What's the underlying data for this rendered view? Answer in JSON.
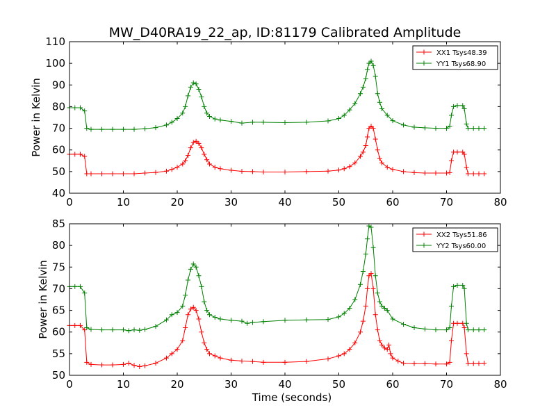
{
  "title": "MW_D40RA19_22_ap, ID:81179 Calibrated Amplitude",
  "chart_data": [
    {
      "type": "line",
      "ylabel": "Power in Kelvin",
      "xlabel": "",
      "xlim": [
        0,
        80
      ],
      "ylim": [
        40,
        110
      ],
      "xticks": [
        0,
        10,
        20,
        30,
        40,
        50,
        60,
        70,
        80
      ],
      "yticks": [
        40,
        50,
        60,
        70,
        80,
        90,
        100,
        110
      ],
      "legend_position": "top-right",
      "grid": false,
      "series": [
        {
          "name": "XX1 Tsys48.39",
          "color": "#ff0000",
          "x": [
            0,
            1,
            2,
            2.8,
            3.2,
            4,
            6,
            8,
            10,
            12,
            14,
            16,
            18,
            19,
            20,
            21,
            21.5,
            22,
            22.5,
            23,
            23.5,
            24,
            24.5,
            25,
            25.5,
            26,
            27,
            28,
            30,
            32,
            34,
            36,
            40,
            44,
            48,
            50,
            51,
            52,
            53,
            54,
            54.5,
            55,
            55.3,
            55.6,
            56,
            56.4,
            56.8,
            57.2,
            57.6,
            58,
            59,
            60,
            62,
            64,
            66,
            68,
            70,
            70.6,
            70.9,
            71.3,
            72,
            73,
            73.3,
            73.7,
            74,
            75,
            76,
            77
          ],
          "y": [
            58,
            58,
            58,
            57,
            49,
            49,
            49,
            49,
            49,
            49,
            49.3,
            49.6,
            50.2,
            51,
            52,
            53.5,
            55,
            57.5,
            61,
            63.5,
            64,
            63,
            61,
            58,
            55.5,
            53.5,
            52,
            51.3,
            50.6,
            50.1,
            50,
            49.8,
            49.8,
            50,
            50.2,
            50.7,
            51.3,
            52.3,
            54,
            57,
            59,
            62,
            66,
            70,
            71,
            70,
            65,
            60,
            56,
            54,
            52,
            51,
            50,
            49.5,
            49.3,
            49.3,
            49.3,
            49.5,
            55,
            59,
            59,
            59,
            58,
            52,
            49,
            49,
            49,
            49
          ]
        },
        {
          "name": "YY1 Tsys68.90",
          "color": "#008000",
          "x": [
            0,
            1,
            2,
            2.8,
            3.2,
            4,
            6,
            8,
            10,
            12,
            14,
            16,
            18,
            19,
            20,
            21,
            21.5,
            22,
            22.5,
            23,
            23.5,
            24,
            24.5,
            25,
            25.5,
            26,
            27,
            28,
            30,
            32,
            34,
            36,
            40,
            44,
            48,
            50,
            51,
            52,
            53,
            54,
            54.5,
            55,
            55.3,
            55.6,
            56,
            56.4,
            56.8,
            57.2,
            57.6,
            58,
            59,
            60,
            62,
            64,
            66,
            68,
            70,
            70.6,
            70.9,
            71.3,
            72,
            73,
            73.3,
            73.7,
            74,
            75,
            76,
            77
          ],
          "y": [
            79.5,
            79.5,
            79.5,
            78,
            70,
            69.5,
            69.5,
            69.5,
            69.5,
            69.5,
            69.8,
            70.3,
            71.5,
            72.8,
            74.5,
            77,
            80,
            85,
            89,
            91,
            90.5,
            88,
            84.5,
            80,
            77,
            75.5,
            74.3,
            73.8,
            73.2,
            72.4,
            72.8,
            72.8,
            72.6,
            72.8,
            73.4,
            74.5,
            76,
            78.5,
            81.5,
            86,
            89,
            93,
            97,
            100,
            101,
            99,
            94,
            86,
            82,
            79,
            76,
            73.5,
            71.5,
            70.5,
            70.2,
            70,
            70,
            71,
            76,
            80,
            80.5,
            80.5,
            79,
            72,
            70,
            70,
            70,
            70
          ]
        }
      ]
    },
    {
      "type": "line",
      "ylabel": "Power in Kelvin",
      "xlabel": "Time (seconds)",
      "xlim": [
        0,
        80
      ],
      "ylim": [
        50,
        85
      ],
      "xticks": [
        0,
        10,
        20,
        30,
        40,
        50,
        60,
        70,
        80
      ],
      "yticks": [
        50,
        55,
        60,
        65,
        70,
        75,
        80,
        85
      ],
      "legend_position": "top-right",
      "grid": false,
      "series": [
        {
          "name": "XX2 Tsys51.86",
          "color": "#ff0000",
          "x": [
            0,
            1,
            2,
            2.8,
            3.2,
            4,
            6,
            8,
            10,
            11,
            12,
            13,
            14,
            16,
            18,
            19,
            20,
            21,
            21.5,
            22,
            22.5,
            23,
            23.5,
            24,
            24.5,
            25,
            25.5,
            26,
            27,
            28,
            30,
            32,
            34,
            36,
            40,
            44,
            48,
            50,
            51,
            52,
            53,
            54,
            54.5,
            55,
            55.3,
            55.6,
            56,
            56.4,
            56.8,
            57.2,
            57.6,
            58,
            58.5,
            59,
            59.3,
            59.6,
            60,
            61,
            62,
            64,
            66,
            68,
            70,
            70.6,
            70.9,
            71.3,
            72,
            73,
            73.3,
            73.7,
            74,
            75,
            76,
            77
          ],
          "y": [
            61.5,
            61.5,
            61.5,
            60.5,
            53,
            52.5,
            52.4,
            52.4,
            52.5,
            52.8,
            52.3,
            52,
            52.2,
            52.8,
            54,
            55,
            56,
            58,
            61,
            64,
            65.3,
            65.7,
            65,
            63,
            60,
            57.5,
            56,
            55,
            54.5,
            54,
            53.5,
            53.3,
            53.2,
            53,
            53,
            53.2,
            53.8,
            54.5,
            55,
            56,
            57.5,
            60,
            62.5,
            66,
            70,
            73,
            73.5,
            70,
            64,
            60.5,
            58,
            57,
            56.3,
            56,
            57,
            55,
            54,
            53.3,
            52.8,
            52.7,
            52.7,
            52.6,
            52.6,
            53,
            58,
            62,
            62,
            62,
            61,
            55,
            52.7,
            52.7,
            52.7,
            52.8
          ]
        },
        {
          "name": "YY2 Tsys60.00",
          "color": "#008000",
          "x": [
            0,
            1,
            2,
            2.8,
            3.2,
            4,
            6,
            8,
            10,
            11,
            12,
            13,
            14,
            16,
            18,
            19,
            20,
            21,
            21.5,
            22,
            22.5,
            23,
            23.5,
            24,
            24.5,
            25,
            25.5,
            26,
            27,
            28,
            30,
            32,
            33,
            34,
            36,
            40,
            44,
            48,
            50,
            51,
            52,
            53,
            54,
            54.5,
            55,
            55.3,
            55.6,
            56,
            56.4,
            56.8,
            57.2,
            57.6,
            58,
            58.5,
            59,
            60,
            62,
            64,
            66,
            68,
            70,
            70.6,
            70.9,
            71.3,
            72,
            73,
            73.3,
            73.7,
            74,
            75,
            76,
            77
          ],
          "y": [
            70.5,
            70.5,
            70.5,
            69,
            61,
            60.6,
            60.5,
            60.5,
            60.5,
            60.3,
            60.5,
            60.4,
            60.6,
            61.3,
            62.8,
            64,
            64.5,
            66,
            68.5,
            72,
            74.5,
            75.7,
            75,
            73,
            70.5,
            67,
            65,
            64,
            63.4,
            63,
            62.7,
            62.5,
            62,
            62.2,
            62.4,
            62.7,
            62.8,
            62.9,
            63.5,
            64.3,
            65.5,
            67.5,
            71,
            74,
            78,
            81.5,
            84.5,
            84.2,
            79.5,
            73,
            69,
            67,
            66,
            65.5,
            65,
            63,
            61.8,
            61,
            60.7,
            60.5,
            60.5,
            61,
            66,
            70.5,
            70.8,
            70.8,
            70,
            62,
            60.5,
            60.5,
            60.5,
            60.5
          ]
        }
      ]
    }
  ]
}
